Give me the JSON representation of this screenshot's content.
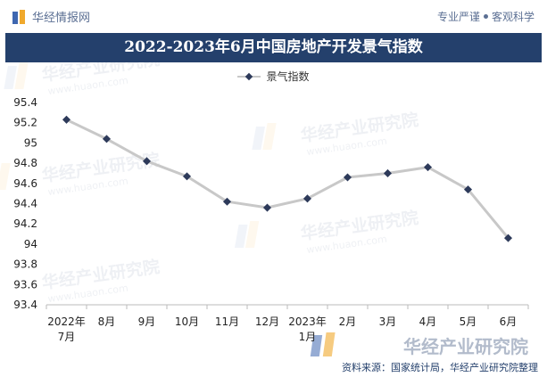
{
  "header": {
    "brand": "华经情报网",
    "slogan_left": "专业严谨",
    "slogan_right": "客观科学"
  },
  "watermark": {
    "text": "华经产业研究院",
    "url": "www.huaon.com"
  },
  "chart_data": {
    "type": "line",
    "title": "2022-2023年6月中国房地产开发景气指数",
    "x": [
      "2022年7月",
      "8月",
      "9月",
      "10月",
      "11月",
      "12月",
      "2023年1月",
      "2月",
      "3月",
      "4月",
      "5月",
      "6月"
    ],
    "x_lines": [
      [
        "2022年",
        "7月"
      ],
      [
        "8月"
      ],
      [
        "9月"
      ],
      [
        "10月"
      ],
      [
        "11月"
      ],
      [
        "12月"
      ],
      [
        "2023年",
        "1月"
      ],
      [
        "2月"
      ],
      [
        "3月"
      ],
      [
        "4月"
      ],
      [
        "5月"
      ],
      [
        "6月"
      ]
    ],
    "series": [
      {
        "name": "景气指数",
        "values": [
          95.23,
          95.04,
          94.82,
          94.67,
          94.42,
          94.36,
          94.45,
          94.66,
          94.7,
          94.76,
          94.54,
          94.06
        ]
      }
    ],
    "ylim": [
      93.4,
      95.4
    ],
    "yticks": [
      "95.4",
      "95.2",
      "95",
      "94.8",
      "94.6",
      "94.4",
      "94.2",
      "94",
      "93.8",
      "93.6",
      "93.4"
    ],
    "grid": false,
    "legend": "top-center",
    "line_color": "#c8c8c8",
    "marker_color": "#2d3a5a"
  },
  "footer": {
    "source": "资料来源：国家统计局，华经产业研究院整理",
    "logo_text": "华经产业研究院"
  }
}
